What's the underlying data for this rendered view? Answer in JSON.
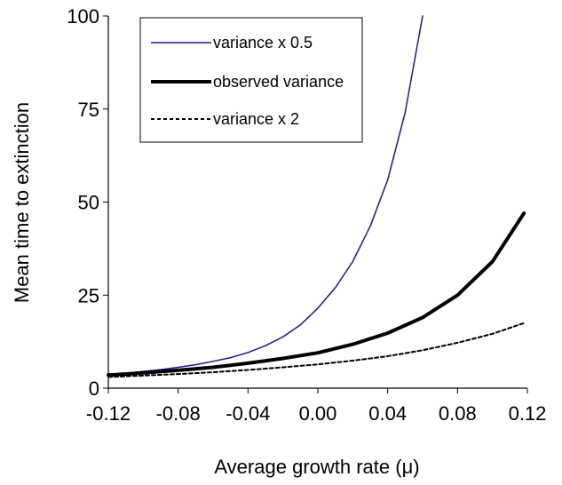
{
  "chart_data": {
    "type": "line",
    "title": "",
    "xlabel_main": "Average growth rate (",
    "xlabel_symbol": "μ",
    "xlabel_end": ")",
    "ylabel": "Mean time to extinction",
    "xlim": [
      -0.12,
      0.12
    ],
    "ylim": [
      0,
      100
    ],
    "x_ticks": [
      -0.12,
      -0.08,
      -0.04,
      0.0,
      0.04,
      0.08,
      0.12
    ],
    "x_tick_labels": [
      "-0.12",
      "-0.08",
      "-0.04",
      "0.00",
      "0.04",
      "0.08",
      "0.12"
    ],
    "y_ticks": [
      0,
      25,
      50,
      75,
      100
    ],
    "y_tick_labels": [
      "0",
      "25",
      "50",
      "75",
      "100"
    ],
    "grid": false,
    "legend_position": "top-left",
    "series": [
      {
        "name": "variance x 0.5",
        "color": "#1a1a8c",
        "style": "thin",
        "x": [
          -0.12,
          -0.11,
          -0.1,
          -0.09,
          -0.08,
          -0.07,
          -0.06,
          -0.05,
          -0.04,
          -0.03,
          -0.02,
          -0.01,
          0.0,
          0.01,
          0.02,
          0.03,
          0.04,
          0.05,
          0.06
        ],
        "y": [
          3.5,
          4.0,
          4.5,
          5.0,
          5.6,
          6.3,
          7.2,
          8.2,
          9.6,
          11.4,
          13.8,
          17.0,
          21.5,
          27.0,
          34.0,
          43.5,
          56.0,
          74.0,
          100.0
        ]
      },
      {
        "name": "observed variance",
        "color": "#000000",
        "style": "thick",
        "x": [
          -0.12,
          -0.1,
          -0.08,
          -0.06,
          -0.04,
          -0.02,
          0.0,
          0.02,
          0.04,
          0.06,
          0.08,
          0.1,
          0.118
        ],
        "y": [
          3.5,
          4.1,
          4.8,
          5.6,
          6.7,
          8.0,
          9.5,
          11.8,
          14.8,
          19.0,
          25.0,
          34.0,
          47.0
        ]
      },
      {
        "name": "variance x 2",
        "color": "#000000",
        "style": "dashed",
        "x": [
          -0.12,
          -0.1,
          -0.08,
          -0.06,
          -0.04,
          -0.02,
          0.0,
          0.02,
          0.04,
          0.06,
          0.08,
          0.1,
          0.118
        ],
        "y": [
          3.0,
          3.4,
          3.8,
          4.3,
          4.9,
          5.6,
          6.4,
          7.4,
          8.6,
          10.2,
          12.2,
          14.6,
          17.5
        ]
      }
    ]
  }
}
